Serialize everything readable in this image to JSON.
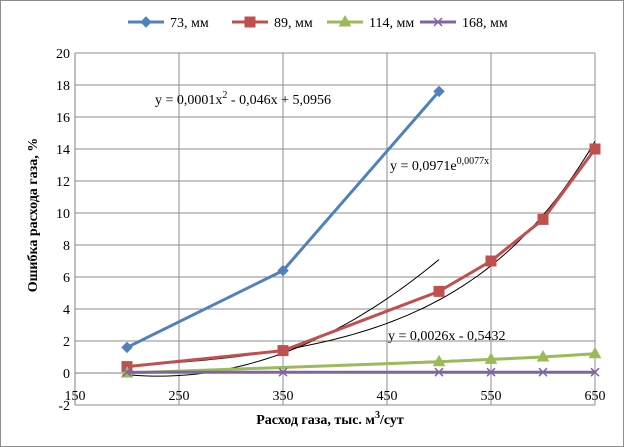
{
  "chart_data": {
    "type": "scatter",
    "xlabel": "Расход газа, тыс. м",
    "xlabel_sup": "3",
    "xlabel_tail": "/сут",
    "ylabel": "Ошибка расхода газа, %",
    "xlim": [
      150,
      650
    ],
    "ylim": [
      -2,
      20
    ],
    "xticks": [
      150,
      250,
      350,
      450,
      550,
      650
    ],
    "yticks": [
      -2,
      0,
      2,
      4,
      6,
      8,
      10,
      12,
      14,
      16,
      18,
      20
    ],
    "grid": true,
    "legend_position": "top",
    "series": [
      {
        "name": "73, мм",
        "color": "#4f81bd",
        "marker": "diamond",
        "x": [
          200,
          350,
          500
        ],
        "y": [
          1.6,
          6.4,
          17.6
        ]
      },
      {
        "name": "89, мм",
        "color": "#c0504d",
        "marker": "square",
        "x": [
          200,
          350,
          500,
          550,
          600,
          650
        ],
        "y": [
          0.4,
          1.4,
          5.1,
          7.0,
          9.6,
          14.0
        ]
      },
      {
        "name": "114, мм",
        "color": "#9bbb59",
        "marker": "triangle",
        "x": [
          200,
          500,
          550,
          600,
          650
        ],
        "y": [
          0.0,
          0.7,
          0.85,
          1.0,
          1.2
        ]
      },
      {
        "name": "168, мм",
        "color": "#8064a2",
        "marker": "x",
        "x": [
          200,
          350,
          500,
          550,
          600,
          650
        ],
        "y": [
          0.05,
          0.05,
          0.05,
          0.05,
          0.05,
          0.05
        ]
      }
    ],
    "trendlines": [
      {
        "label_main": "y = 0,0001x",
        "label_sup": "2",
        "label_tail": " - 0,046x + 5,0956",
        "kind": "poly2",
        "coef": [
          0.0001,
          -0.046,
          5.0956
        ],
        "x_range": [
          200,
          500
        ]
      },
      {
        "label_main": "y = 0,0971e",
        "label_sup": "0,0077x",
        "label_tail": "",
        "kind": "exp",
        "coef": [
          0.0971,
          0.0077
        ],
        "x_range": [
          200,
          650
        ]
      },
      {
        "label_main": "y = 0,0026x - 0,5432",
        "label_sup": "",
        "label_tail": "",
        "kind": "linear",
        "coef": [
          0.0026,
          -0.5432
        ],
        "x_range": [
          200,
          650
        ]
      }
    ]
  }
}
